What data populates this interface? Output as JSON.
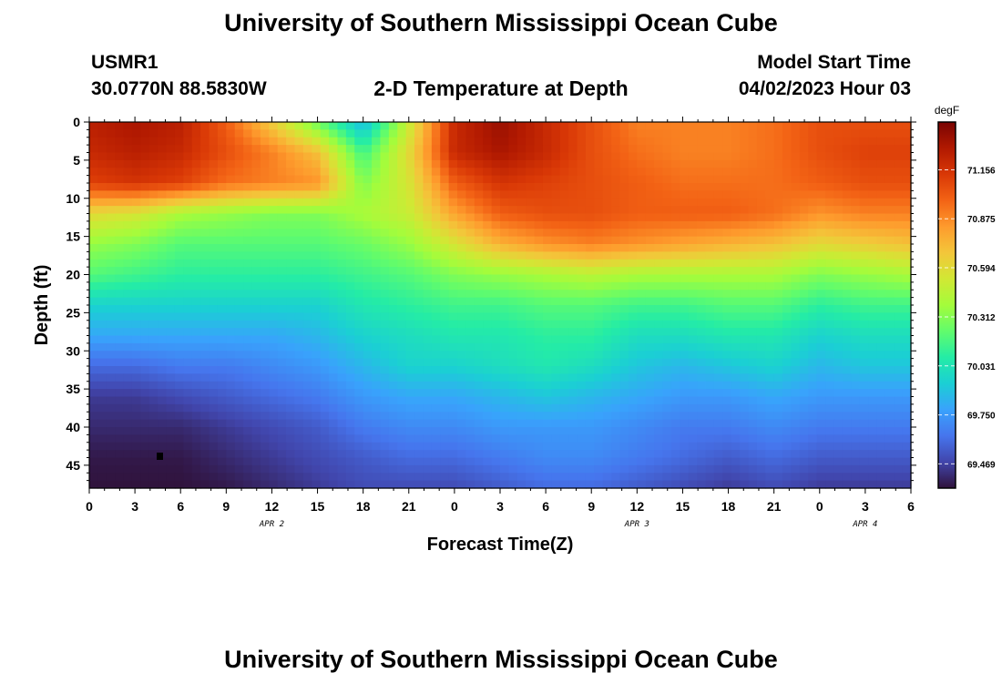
{
  "page": {
    "title_top": "University of Southern Mississippi Ocean Cube",
    "title_bottom": "University of Southern Mississippi Ocean Cube",
    "station_id": "USMR1",
    "station_coords": "30.0770N  88.5830W",
    "plot_title": "2-D Temperature at Depth",
    "model_start_label": "Model Start Time",
    "model_start_value": "04/02/2023 Hour 03"
  },
  "chart_data": {
    "type": "heatmap",
    "title": "2-D Temperature at Depth",
    "xlabel": "Forecast Time(Z)",
    "ylabel": "Depth (ft)",
    "x_unit": "hours since 04/02/2023 00Z",
    "xlim": [
      0,
      54
    ],
    "ylim": [
      48,
      0
    ],
    "x_ticks": [
      0,
      3,
      6,
      9,
      12,
      15,
      18,
      21,
      24,
      27,
      30,
      33,
      36,
      39,
      42,
      45,
      48,
      51,
      54
    ],
    "x_tick_labels": [
      "0",
      "3",
      "6",
      "9",
      "12",
      "15",
      "18",
      "21",
      "0",
      "3",
      "6",
      "9",
      "12",
      "15",
      "18",
      "21",
      "0",
      "3",
      "6"
    ],
    "y_ticks": [
      0,
      5,
      10,
      15,
      20,
      25,
      30,
      35,
      40,
      45
    ],
    "y_tick_labels": [
      "0",
      "5",
      "10",
      "15",
      "20",
      "25",
      "30",
      "35",
      "40",
      "45"
    ],
    "date_labels": [
      {
        "text": "APR 2",
        "x": 12
      },
      {
        "text": "APR 3",
        "x": 36
      },
      {
        "text": "APR 4",
        "x": 51
      }
    ],
    "colorbar": {
      "unit": "degF",
      "vmin": 69.33,
      "vmax": 71.43,
      "ticks": [
        71.156,
        70.875,
        70.594,
        70.312,
        70.031,
        69.75,
        69.469
      ],
      "tick_labels": [
        "71.156",
        "70.875",
        "70.594",
        "70.312",
        "70.031",
        "69.750",
        "69.469"
      ]
    },
    "colorscale": [
      "#30123b",
      "#4145ab",
      "#4675ed",
      "#39a2fc",
      "#1bcfd4",
      "#24eca6",
      "#61fc6c",
      "#a4fc3b",
      "#d1e834",
      "#f3c63a",
      "#fe9b2d",
      "#f36315",
      "#d93806",
      "#b11901",
      "#7a0402"
    ],
    "times": [
      0,
      3,
      6,
      9,
      12,
      15,
      18,
      21,
      24,
      27,
      30,
      33,
      36,
      39,
      42,
      45,
      48,
      51,
      54
    ],
    "depths": [
      0,
      4,
      8,
      12,
      16,
      20,
      24,
      28,
      32,
      36,
      40,
      44,
      48
    ],
    "temperature_degF": [
      [
        71.25,
        71.3,
        71.25,
        71.0,
        70.65,
        70.25,
        69.85,
        70.5,
        71.2,
        71.35,
        71.2,
        71.05,
        70.9,
        70.9,
        70.9,
        70.95,
        71.05,
        71.05,
        71.05
      ],
      [
        71.2,
        71.25,
        71.2,
        71.05,
        70.9,
        70.7,
        70.15,
        70.6,
        71.2,
        71.3,
        71.2,
        71.05,
        70.95,
        70.9,
        70.9,
        70.95,
        71.05,
        71.1,
        71.1
      ],
      [
        71.1,
        71.15,
        71.1,
        70.95,
        70.9,
        70.85,
        70.3,
        70.55,
        71.0,
        71.15,
        71.1,
        71.05,
        71.0,
        70.95,
        70.95,
        70.95,
        71.0,
        71.05,
        71.05
      ],
      [
        70.6,
        70.55,
        70.4,
        70.35,
        70.3,
        70.3,
        70.4,
        70.5,
        70.8,
        71.0,
        71.05,
        71.05,
        71.0,
        71.0,
        71.0,
        70.95,
        70.85,
        70.9,
        70.9
      ],
      [
        70.35,
        70.3,
        70.2,
        70.2,
        70.2,
        70.2,
        70.25,
        70.35,
        70.55,
        70.75,
        70.85,
        70.9,
        70.85,
        70.8,
        70.75,
        70.7,
        70.6,
        70.65,
        70.7
      ],
      [
        70.2,
        70.15,
        70.1,
        70.1,
        70.1,
        70.1,
        70.15,
        70.2,
        70.3,
        70.35,
        70.4,
        70.45,
        70.4,
        70.4,
        70.4,
        70.4,
        70.3,
        70.35,
        70.4
      ],
      [
        69.95,
        69.95,
        69.95,
        69.95,
        69.95,
        69.95,
        70.05,
        70.1,
        70.15,
        70.15,
        70.2,
        70.2,
        70.15,
        70.15,
        70.2,
        70.2,
        70.1,
        70.15,
        70.15
      ],
      [
        69.8,
        69.8,
        69.8,
        69.8,
        69.8,
        69.85,
        69.95,
        70.0,
        70.05,
        70.05,
        70.1,
        70.1,
        70.0,
        70.0,
        70.05,
        70.05,
        69.95,
        70.0,
        70.0
      ],
      [
        69.6,
        69.6,
        69.65,
        69.65,
        69.7,
        69.75,
        69.85,
        69.95,
        69.95,
        70.0,
        70.05,
        70.0,
        69.9,
        69.85,
        69.9,
        69.95,
        69.85,
        69.9,
        69.9
      ],
      [
        69.45,
        69.45,
        69.5,
        69.55,
        69.6,
        69.65,
        69.75,
        69.8,
        69.8,
        69.85,
        69.9,
        69.85,
        69.8,
        69.75,
        69.75,
        69.8,
        69.75,
        69.75,
        69.75
      ],
      [
        69.4,
        69.4,
        69.4,
        69.45,
        69.5,
        69.55,
        69.65,
        69.7,
        69.7,
        69.75,
        69.75,
        69.75,
        69.7,
        69.65,
        69.65,
        69.7,
        69.65,
        69.65,
        69.65
      ],
      [
        69.35,
        69.35,
        69.35,
        69.4,
        69.45,
        69.5,
        69.55,
        69.6,
        69.6,
        69.65,
        69.7,
        69.7,
        69.65,
        69.6,
        69.55,
        69.6,
        69.55,
        69.55,
        69.55
      ],
      [
        69.33,
        69.33,
        69.33,
        69.35,
        69.4,
        69.45,
        69.5,
        69.5,
        69.5,
        69.55,
        69.6,
        69.6,
        69.55,
        69.5,
        69.45,
        69.5,
        69.45,
        69.45,
        69.45
      ]
    ]
  }
}
